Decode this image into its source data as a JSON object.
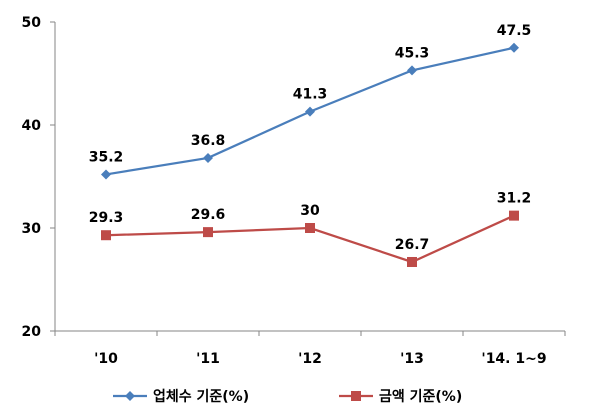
{
  "chart_data": {
    "type": "line",
    "categories": [
      "'10",
      "'11",
      "'12",
      "'13",
      "'14. 1~9"
    ],
    "series": [
      {
        "name": "업체수 기준(%)",
        "values": [
          35.2,
          36.8,
          41.3,
          45.3,
          47.5
        ],
        "color": "#4a7ebb",
        "marker": "diamond"
      },
      {
        "name": "금액 기준(%)",
        "values": [
          29.3,
          29.6,
          30,
          26.7,
          31.2
        ],
        "color": "#be4b48",
        "marker": "square"
      }
    ],
    "ylim": [
      20,
      50
    ],
    "yticks": [
      20,
      30,
      40,
      50
    ],
    "grid": false,
    "legend_position": "bottom",
    "title": "",
    "xlabel": "",
    "ylabel": ""
  }
}
